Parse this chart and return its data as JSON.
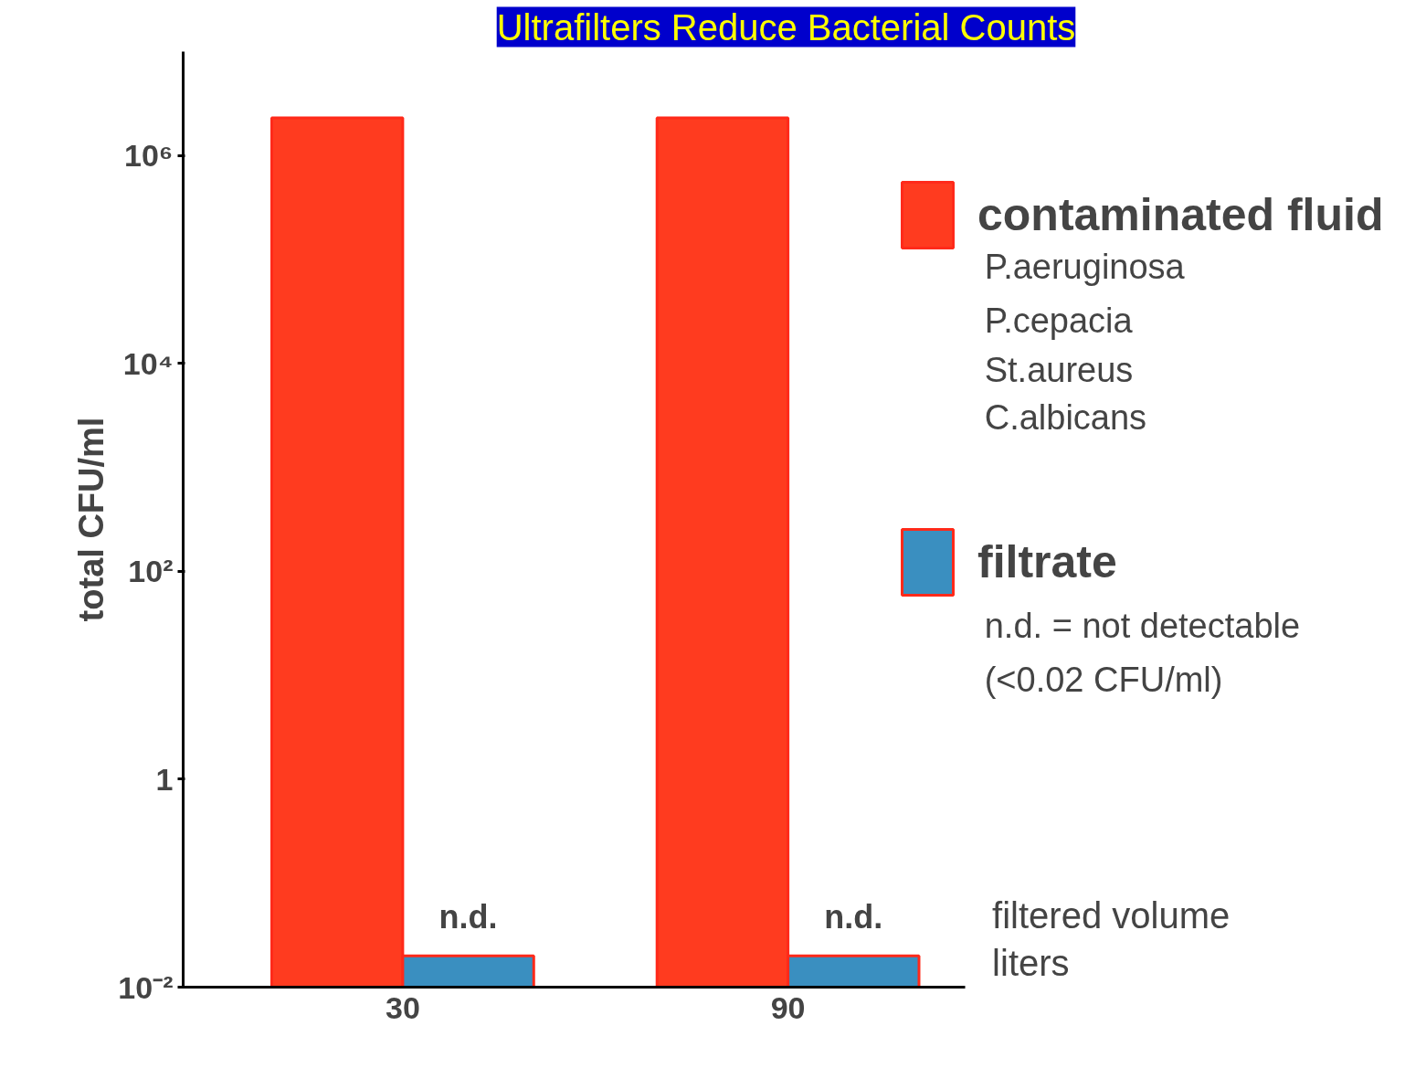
{
  "chart_data": {
    "type": "bar",
    "title": "Ultrafilters Reduce Bacterial Counts",
    "categories": [
      "30",
      "90"
    ],
    "xlabel": "filtered volume\nliters",
    "ylabel": "total CFU/ml",
    "log": true,
    "ylim": [
      0.01,
      10000000
    ],
    "yticks": [
      {
        "value": 0.01,
        "label": "10⁻²"
      },
      1,
      {
        "value": 100,
        "label": "10²"
      },
      {
        "value": 10000,
        "label": "10⁴"
      },
      {
        "value": 1000000,
        "label": "10⁶"
      }
    ],
    "series": [
      {
        "name": "contaminated fluid",
        "color": "#ff3b1f",
        "values": [
          2300000,
          2300000
        ]
      },
      {
        "name": "filtrate",
        "color": "#3a8fc0",
        "values": [
          0.02,
          0.02
        ],
        "value_labels": [
          "n.d.",
          "n.d."
        ]
      }
    ],
    "legend": "right",
    "grid": false,
    "annotations": [
      "P.aeruginosa",
      "P.cepacia",
      "St.aureus",
      "C.albicans",
      "n.d. = not detectable",
      "(<0.02 CFU/ml)"
    ]
  }
}
